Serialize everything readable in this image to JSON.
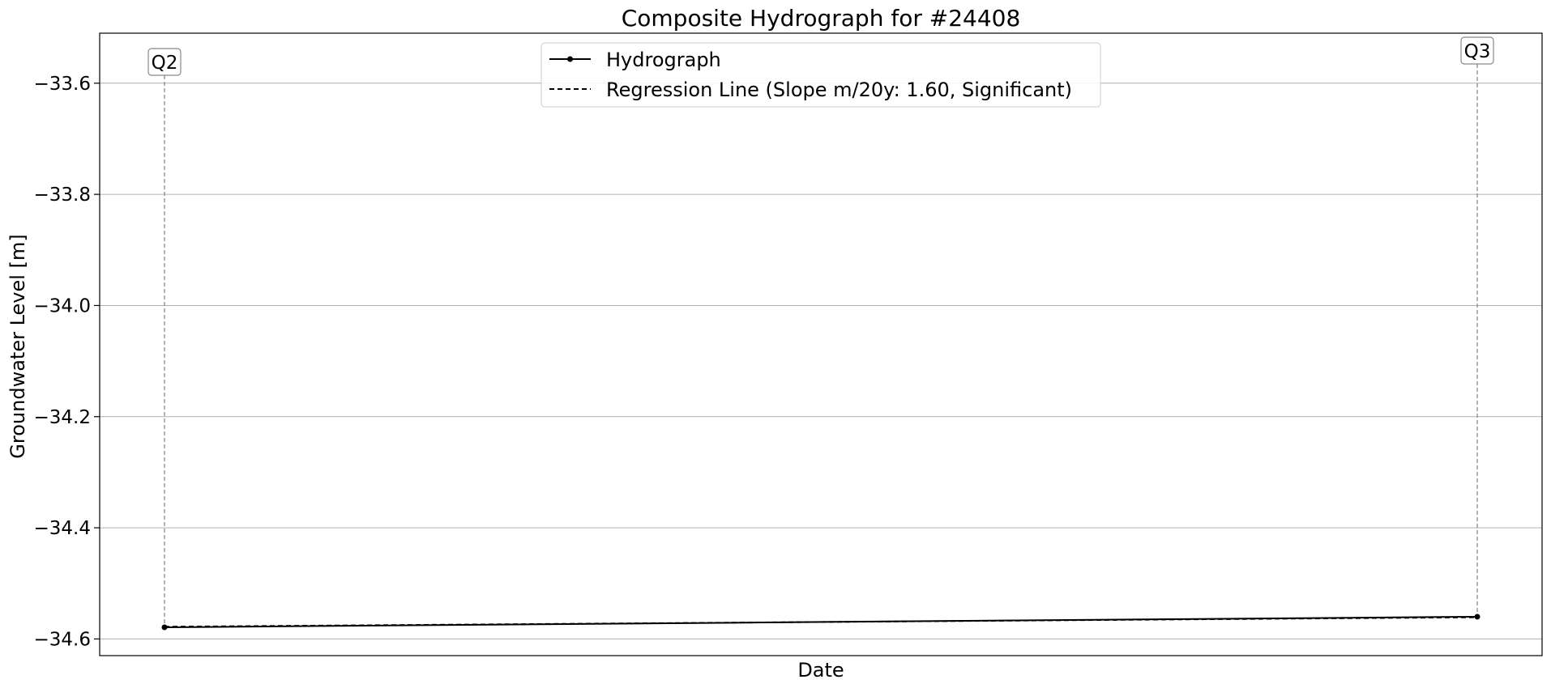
{
  "chart_data": {
    "type": "line",
    "title": "Composite Hydrograph for  #24408",
    "xlabel": "Date",
    "ylabel": "Groundwater Level [m]",
    "ylim": [
      -34.63,
      -33.51
    ],
    "yticks": [
      -33.6,
      -33.8,
      -34.0,
      -34.2,
      -34.4,
      -34.6
    ],
    "ytick_labels": [
      "−33.6",
      "−33.8",
      "−34.0",
      "−34.2",
      "−34.4",
      "−34.6"
    ],
    "grid": "horizontal",
    "legend_position": "top-center",
    "series": [
      {
        "name": "Hydrograph",
        "style": "solid",
        "marker": "dot",
        "color": "#000000",
        "points": [
          {
            "x": "Q2",
            "y": -34.579
          },
          {
            "x": "Q3",
            "y": -34.56
          }
        ]
      },
      {
        "name": "Regression Line (Slope m/20y: 1.60, Significant)",
        "style": "dashed",
        "color": "#000000",
        "points": [
          {
            "x": "Q2",
            "y": -34.578
          },
          {
            "x": "Q3",
            "y": -34.561
          }
        ]
      }
    ],
    "annotations": [
      {
        "label": "Q2",
        "x": "Q2",
        "line_color": "#888888",
        "line_style": "dashed"
      },
      {
        "label": "Q3",
        "x": "Q3",
        "line_color": "#888888",
        "line_style": "dashed"
      }
    ]
  }
}
